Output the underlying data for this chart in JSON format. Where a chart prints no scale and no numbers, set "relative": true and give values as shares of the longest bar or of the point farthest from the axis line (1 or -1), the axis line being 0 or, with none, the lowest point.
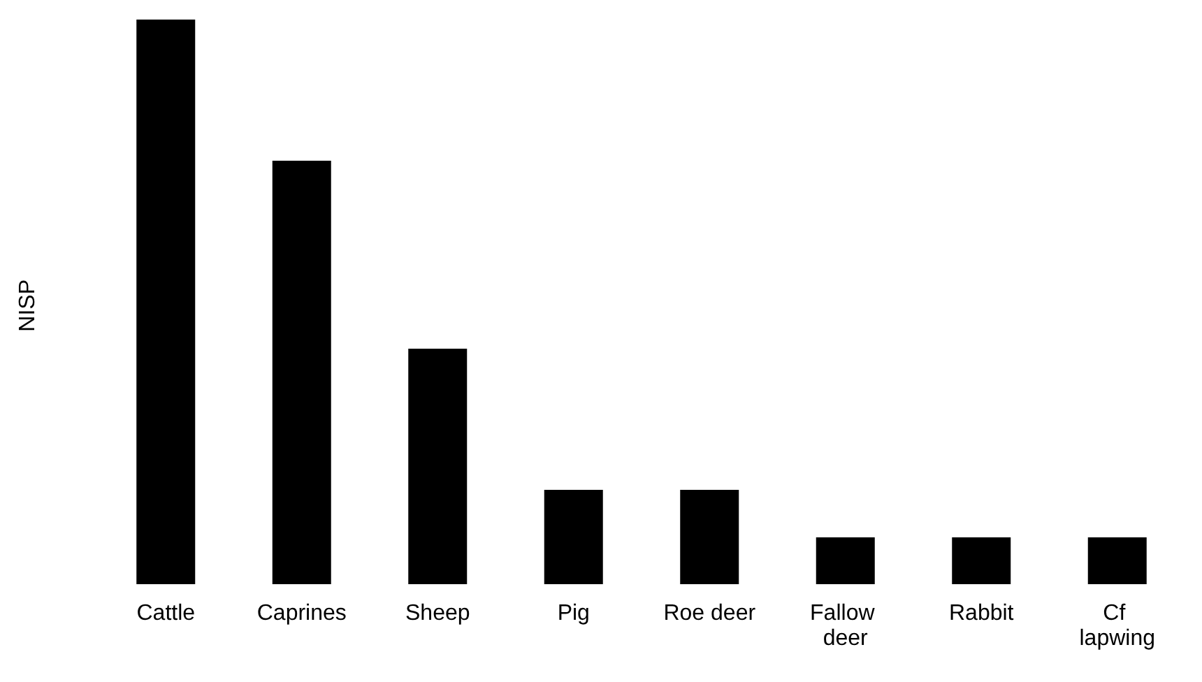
{
  "chart_data": {
    "type": "bar",
    "ylabel": "NISP",
    "relative": true,
    "categories": [
      "Cattle",
      "Caprines",
      "Sheep",
      "Pig",
      "Roe deer",
      "Fallow deer",
      "Rabbit",
      "Cf lapwing"
    ],
    "values": [
      1,
      0.75,
      0.417,
      0.167,
      0.167,
      0.083,
      0.083,
      0.083
    ],
    "color": "#000000"
  }
}
